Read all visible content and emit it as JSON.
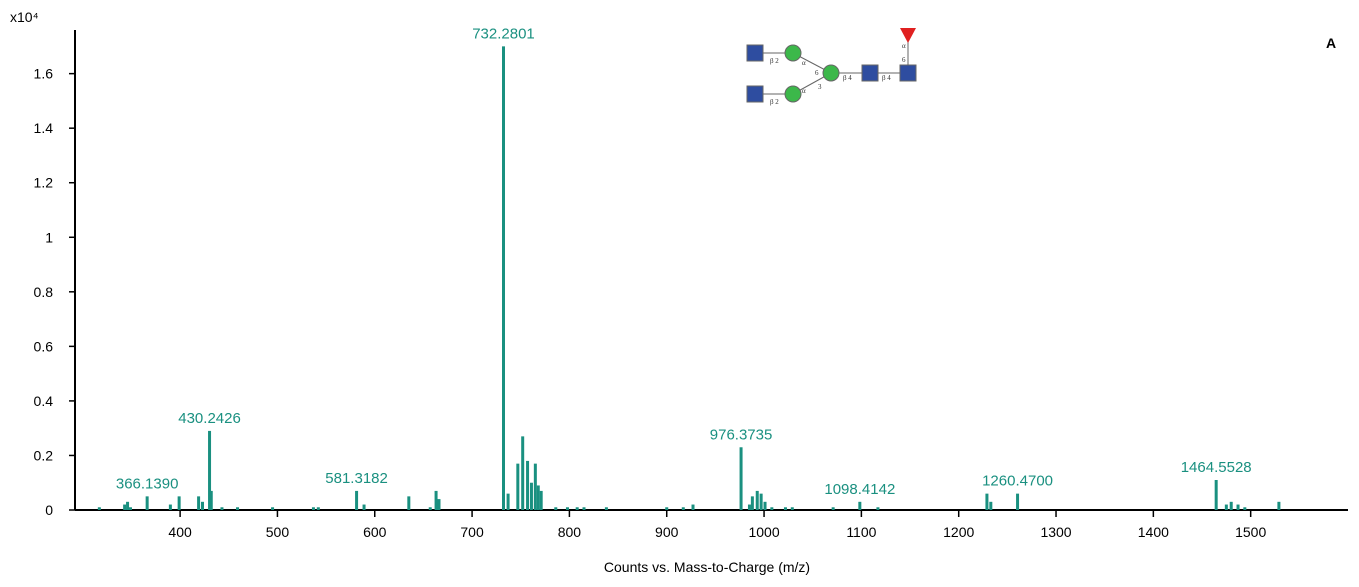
{
  "chart_data": {
    "type": "stem",
    "panel_label": "A",
    "y_multiplier": "x10⁴",
    "x_label": "Counts vs. Mass-to-Charge (m/z)",
    "color": "#1a9080",
    "xlim": [
      292,
      1600
    ],
    "ylim": [
      0,
      1.76
    ],
    "xticks": [
      400,
      500,
      600,
      700,
      800,
      900,
      1000,
      1100,
      1200,
      1300,
      1400,
      1500
    ],
    "yticks": [
      0,
      0.2,
      0.4,
      0.6,
      0.8,
      1,
      1.2,
      1.4,
      1.6
    ],
    "x": [
      317,
      343,
      346,
      349,
      366.139,
      390,
      399,
      419,
      423,
      430.2426,
      432,
      443,
      459,
      495,
      537,
      542,
      581.3182,
      589,
      635,
      657,
      663,
      666,
      732.2801,
      737,
      747,
      752,
      757,
      761,
      765,
      768,
      771,
      786,
      798,
      808,
      815,
      838,
      900,
      917,
      927,
      976.3735,
      985,
      988,
      993,
      997,
      1001,
      1008,
      1022,
      1029,
      1071,
      1098.4142,
      1117,
      1229,
      1233,
      1260.47,
      1464.5528,
      1475,
      1480,
      1487,
      1494,
      1529
    ],
    "values": [
      0.01,
      0.02,
      0.03,
      0.01,
      0.05,
      0.02,
      0.05,
      0.05,
      0.03,
      0.29,
      0.07,
      0.01,
      0.01,
      0.01,
      0.01,
      0.01,
      0.07,
      0.02,
      0.05,
      0.01,
      0.07,
      0.04,
      1.7,
      0.06,
      0.17,
      0.27,
      0.18,
      0.1,
      0.17,
      0.09,
      0.07,
      0.01,
      0.01,
      0.01,
      0.01,
      0.01,
      0.01,
      0.01,
      0.02,
      0.23,
      0.02,
      0.05,
      0.07,
      0.06,
      0.03,
      0.01,
      0.01,
      0.01,
      0.01,
      0.03,
      0.01,
      0.06,
      0.03,
      0.06,
      0.11,
      0.02,
      0.03,
      0.02,
      0.01,
      0.03
    ],
    "peak_labels": [
      null,
      null,
      null,
      null,
      "366.1390",
      null,
      null,
      null,
      null,
      "430.2426",
      null,
      null,
      null,
      null,
      null,
      null,
      "581.3182",
      null,
      null,
      null,
      null,
      null,
      "732.2801",
      null,
      null,
      null,
      null,
      null,
      null,
      null,
      null,
      null,
      null,
      null,
      null,
      null,
      null,
      null,
      null,
      "976.3735",
      null,
      null,
      null,
      null,
      null,
      null,
      null,
      null,
      null,
      "1098.4142",
      null,
      null,
      null,
      "1260.4700",
      "1464.5528",
      null,
      null,
      null,
      null,
      null
    ],
    "glycan_linkages": [
      "β 2",
      "β 2",
      "α",
      "α",
      "6",
      "3",
      "β 4",
      "β 4",
      "α",
      "6"
    ]
  }
}
